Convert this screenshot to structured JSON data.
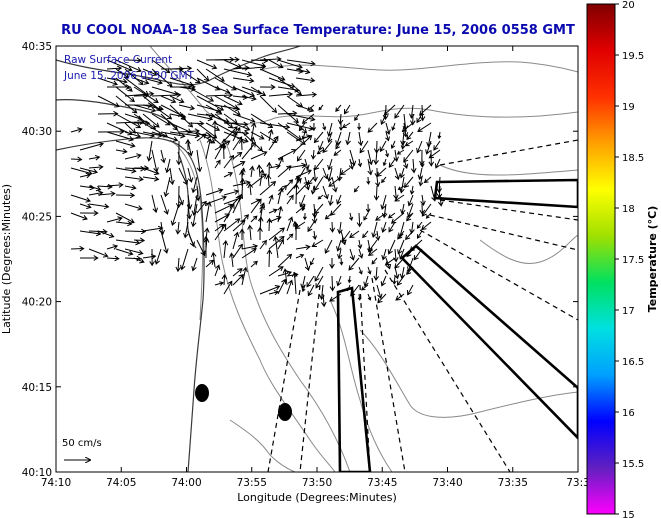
{
  "title": "RU COOL  NOAA–18  Sea Surface Temperature:  June 15, 2006 0558 GMT",
  "legend": {
    "line1": "Raw Surface Current",
    "line2": "June 15, 2006 0530 GMT"
  },
  "scale_label": "50 cm/s",
  "x_axis": {
    "label": "Longitude (Degrees:Minutes)",
    "ticks": [
      "74:10",
      "74:05",
      "74:00",
      "73:55",
      "73:50",
      "73:45",
      "73:40",
      "73:35",
      "73:3"
    ]
  },
  "y_axis": {
    "label": "Latitude (Degrees:Minutes)",
    "ticks": [
      "40:35",
      "40:30",
      "40:25",
      "40:20",
      "40:15",
      "40:10"
    ]
  },
  "colorbar": {
    "label": "Temperature (°C)",
    "ticks": [
      "20",
      "19.5",
      "19",
      "18.5",
      "18",
      "17.5",
      "17",
      "16.5",
      "16",
      "15.5",
      "15"
    ],
    "colors": [
      "#ff00ff",
      "#6020c0",
      "#0000ff",
      "#00a0ff",
      "#00e0e0",
      "#00e060",
      "#a0e000",
      "#ffff00",
      "#ffa000",
      "#ff3000",
      "#e00000",
      "#800000"
    ]
  },
  "chart_data": {
    "type": "map",
    "xlim_deg": [
      -74.1667,
      -73.5
    ],
    "ylim_deg": [
      40.1667,
      40.5833
    ],
    "grid": false,
    "colorbar_range_c": [
      15,
      20
    ],
    "markers": [
      {
        "lon": -73.9833,
        "lat": 40.2417
      },
      {
        "lon": -73.8708,
        "lat": 40.225
      }
    ]
  }
}
